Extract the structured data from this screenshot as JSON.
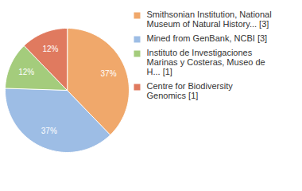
{
  "chart_data": {
    "type": "pie",
    "categories": [
      "Smithsonian Institution, National Museum of Natural History... [3]",
      "Mined from GenBank, NCBI [3]",
      "Instituto de Investigaciones Marinas y Costeras, Museo de H... [1]",
      "Centre for Biodiversity Genomics [1]"
    ],
    "values": [
      37,
      37,
      12,
      12
    ],
    "value_labels": [
      "37%",
      "37%",
      "12%",
      "12%"
    ],
    "colors": [
      "#f0a86b",
      "#9dbde5",
      "#a4cc7c",
      "#e07a5f"
    ],
    "data_labels": true,
    "legend": "right"
  }
}
